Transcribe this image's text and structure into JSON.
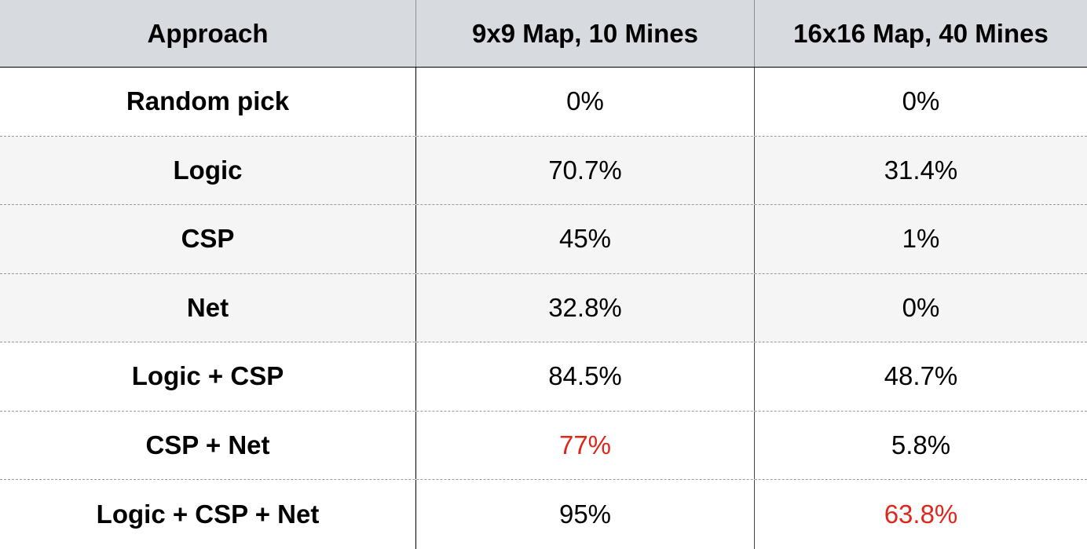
{
  "chart_data": {
    "type": "table",
    "columns": [
      "Approach",
      "9x9 Map, 10 Mines",
      "16x16 Map, 40 Mines"
    ],
    "rows": [
      {
        "approach": "Random pick",
        "values": [
          "0%",
          "0%"
        ]
      },
      {
        "approach": "Logic",
        "values": [
          "70.7%",
          "31.4%"
        ]
      },
      {
        "approach": "CSP",
        "values": [
          "45%",
          "1%"
        ]
      },
      {
        "approach": "Net",
        "values": [
          "32.8%",
          "0%"
        ]
      },
      {
        "approach": "Logic + CSP",
        "values": [
          "84.5%",
          "48.7%"
        ]
      },
      {
        "approach": "CSP + Net",
        "values": [
          "77%",
          "5.8%"
        ]
      },
      {
        "approach": "Logic + CSP + Net",
        "values": [
          "95%",
          "63.8%"
        ]
      }
    ],
    "highlighted": [
      {
        "row": 5,
        "col": 0
      },
      {
        "row": 6,
        "col": 1
      }
    ]
  },
  "colors": {
    "header_background": "#d7dbdf",
    "alternate_row_background": "#f5f5f5",
    "highlight_text": "#e0261b",
    "text": "#000000"
  }
}
